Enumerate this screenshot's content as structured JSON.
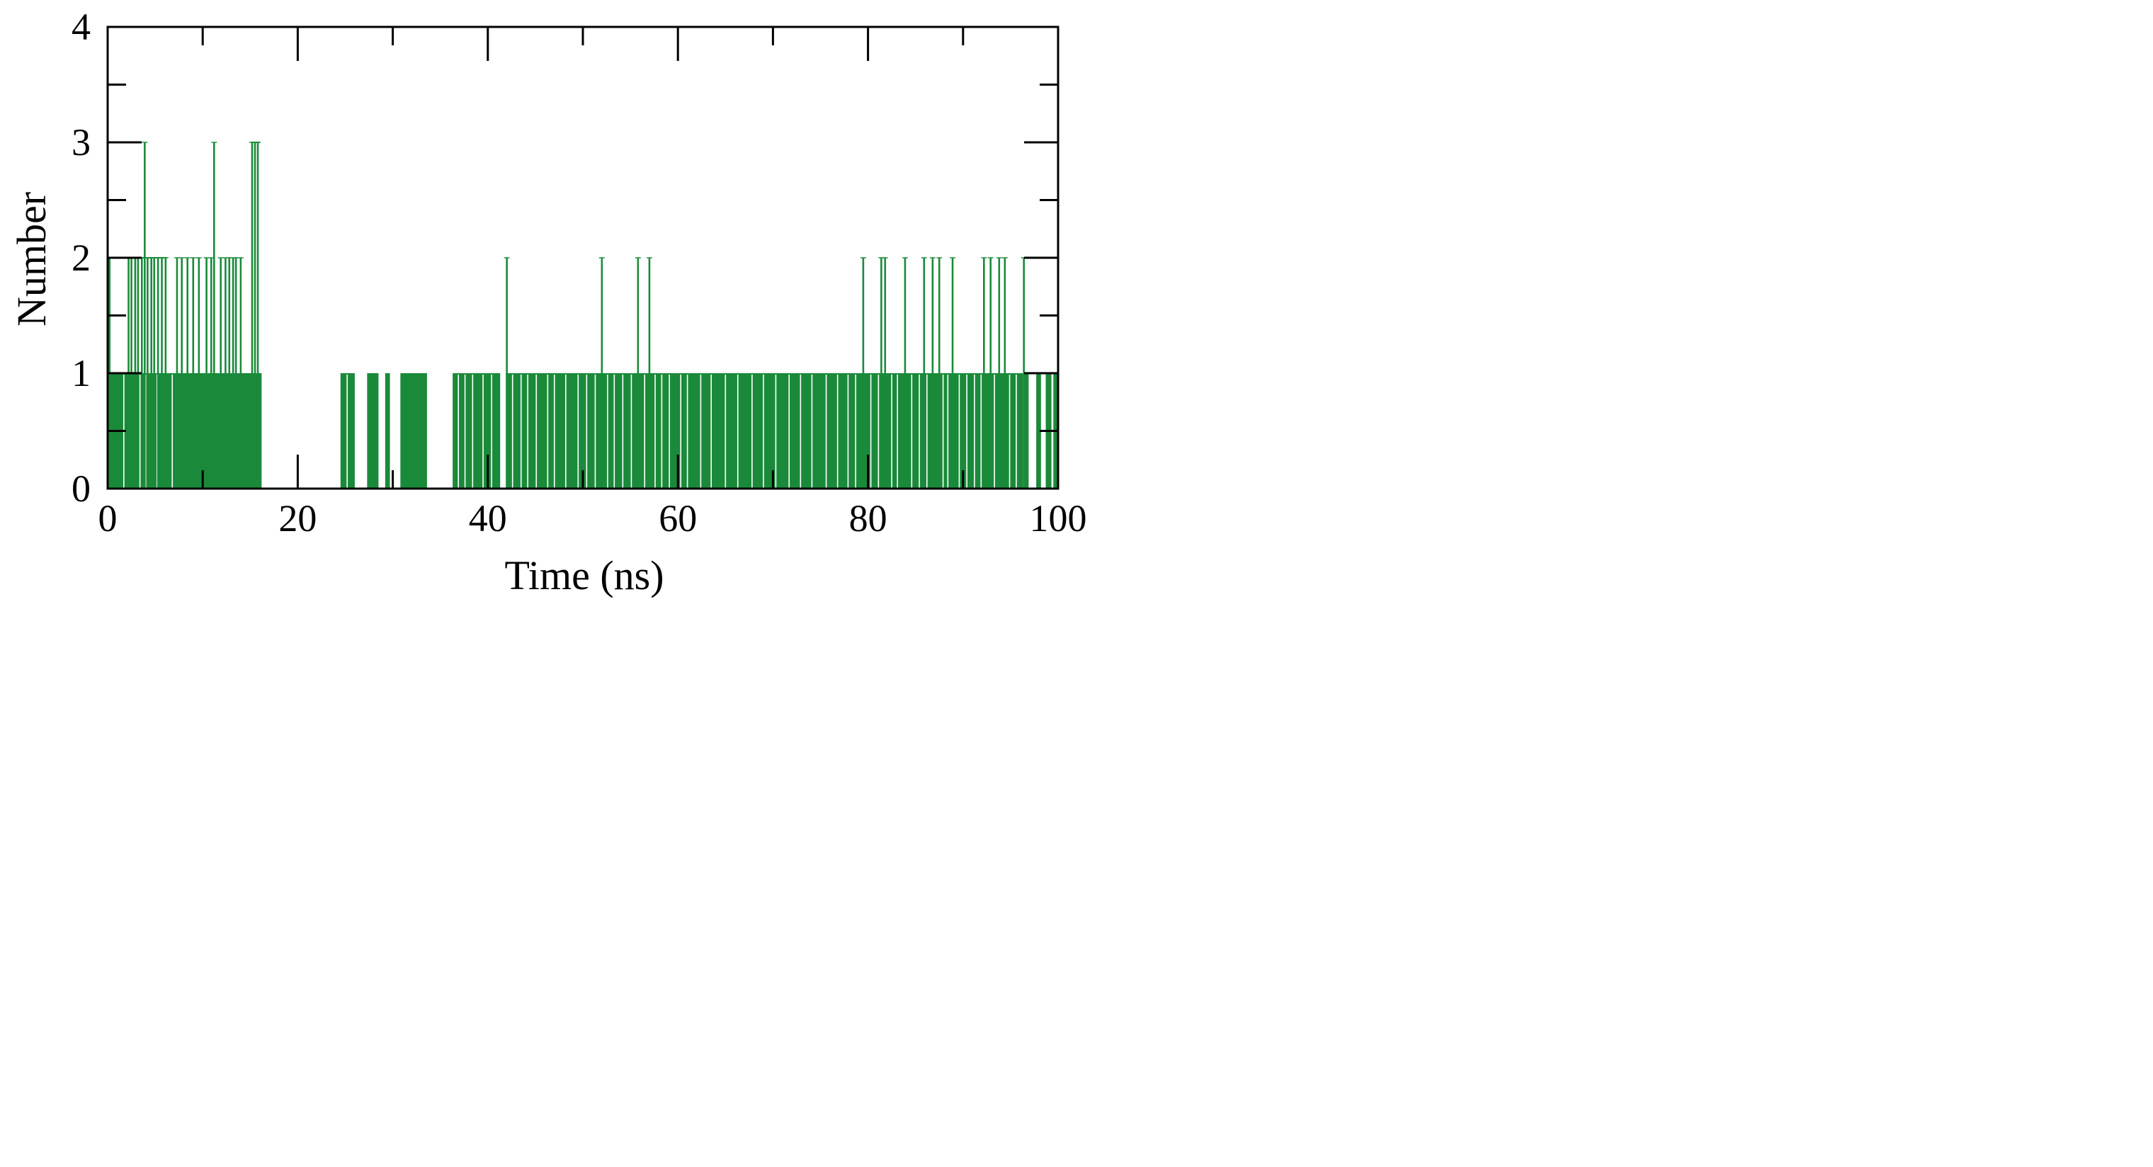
{
  "chart_data": {
    "type": "bar",
    "title": "",
    "xlabel": "Time (ns)",
    "ylabel": "Number",
    "xlim": [
      0,
      100
    ],
    "ylim": [
      0,
      4
    ],
    "x_ticks": [
      {
        "value": 0,
        "label": "0"
      },
      {
        "value": 20,
        "label": "20"
      },
      {
        "value": 40,
        "label": "40"
      },
      {
        "value": 60,
        "label": "60"
      },
      {
        "value": 80,
        "label": "80"
      },
      {
        "value": 100,
        "label": "100"
      }
    ],
    "y_ticks": [
      {
        "value": 0,
        "label": "0"
      },
      {
        "value": 1,
        "label": "1"
      },
      {
        "value": 2,
        "label": "2"
      },
      {
        "value": 3,
        "label": "3"
      },
      {
        "value": 4,
        "label": "4"
      }
    ],
    "grid": false,
    "legend": "none",
    "color": "#1a8a3a",
    "segments_value_1": [
      [
        0,
        16.2
      ],
      [
        24.5,
        26
      ],
      [
        27.3,
        28.5
      ],
      [
        29.2,
        29.7
      ],
      [
        30.8,
        33.6
      ],
      [
        36.3,
        41.3
      ],
      [
        41.9,
        96.3
      ],
      [
        96.5,
        96.9
      ],
      [
        97.7,
        98.2
      ],
      [
        98.7,
        99.3
      ],
      [
        99.5,
        100
      ]
    ],
    "spikes": [
      {
        "x": 0.2,
        "value": 2
      },
      {
        "x": 2.2,
        "value": 2
      },
      {
        "x": 2.5,
        "value": 2
      },
      {
        "x": 2.9,
        "value": 2
      },
      {
        "x": 3.2,
        "value": 2
      },
      {
        "x": 3.6,
        "value": 2
      },
      {
        "x": 3.9,
        "value": 3
      },
      {
        "x": 4.2,
        "value": 2
      },
      {
        "x": 4.6,
        "value": 2
      },
      {
        "x": 4.9,
        "value": 2
      },
      {
        "x": 5.3,
        "value": 2
      },
      {
        "x": 5.7,
        "value": 2
      },
      {
        "x": 6.1,
        "value": 2
      },
      {
        "x": 7.3,
        "value": 2
      },
      {
        "x": 7.8,
        "value": 2
      },
      {
        "x": 8.4,
        "value": 2
      },
      {
        "x": 9.0,
        "value": 2
      },
      {
        "x": 9.6,
        "value": 2
      },
      {
        "x": 10.4,
        "value": 2
      },
      {
        "x": 10.9,
        "value": 2
      },
      {
        "x": 11.2,
        "value": 3
      },
      {
        "x": 11.9,
        "value": 2
      },
      {
        "x": 12.4,
        "value": 2
      },
      {
        "x": 12.8,
        "value": 2
      },
      {
        "x": 13.2,
        "value": 2
      },
      {
        "x": 13.5,
        "value": 2
      },
      {
        "x": 14.0,
        "value": 2
      },
      {
        "x": 15.2,
        "value": 3
      },
      {
        "x": 15.5,
        "value": 3
      },
      {
        "x": 15.8,
        "value": 3
      },
      {
        "x": 42.0,
        "value": 2
      },
      {
        "x": 52.0,
        "value": 2
      },
      {
        "x": 55.8,
        "value": 2
      },
      {
        "x": 57.0,
        "value": 2
      },
      {
        "x": 79.5,
        "value": 2
      },
      {
        "x": 81.4,
        "value": 2
      },
      {
        "x": 81.8,
        "value": 2
      },
      {
        "x": 83.9,
        "value": 2
      },
      {
        "x": 85.9,
        "value": 2
      },
      {
        "x": 86.8,
        "value": 2
      },
      {
        "x": 87.5,
        "value": 2
      },
      {
        "x": 88.9,
        "value": 2
      },
      {
        "x": 92.2,
        "value": 2
      },
      {
        "x": 92.9,
        "value": 2
      },
      {
        "x": 93.8,
        "value": 2
      },
      {
        "x": 94.4,
        "value": 2
      },
      {
        "x": 96.4,
        "value": 2
      }
    ]
  }
}
